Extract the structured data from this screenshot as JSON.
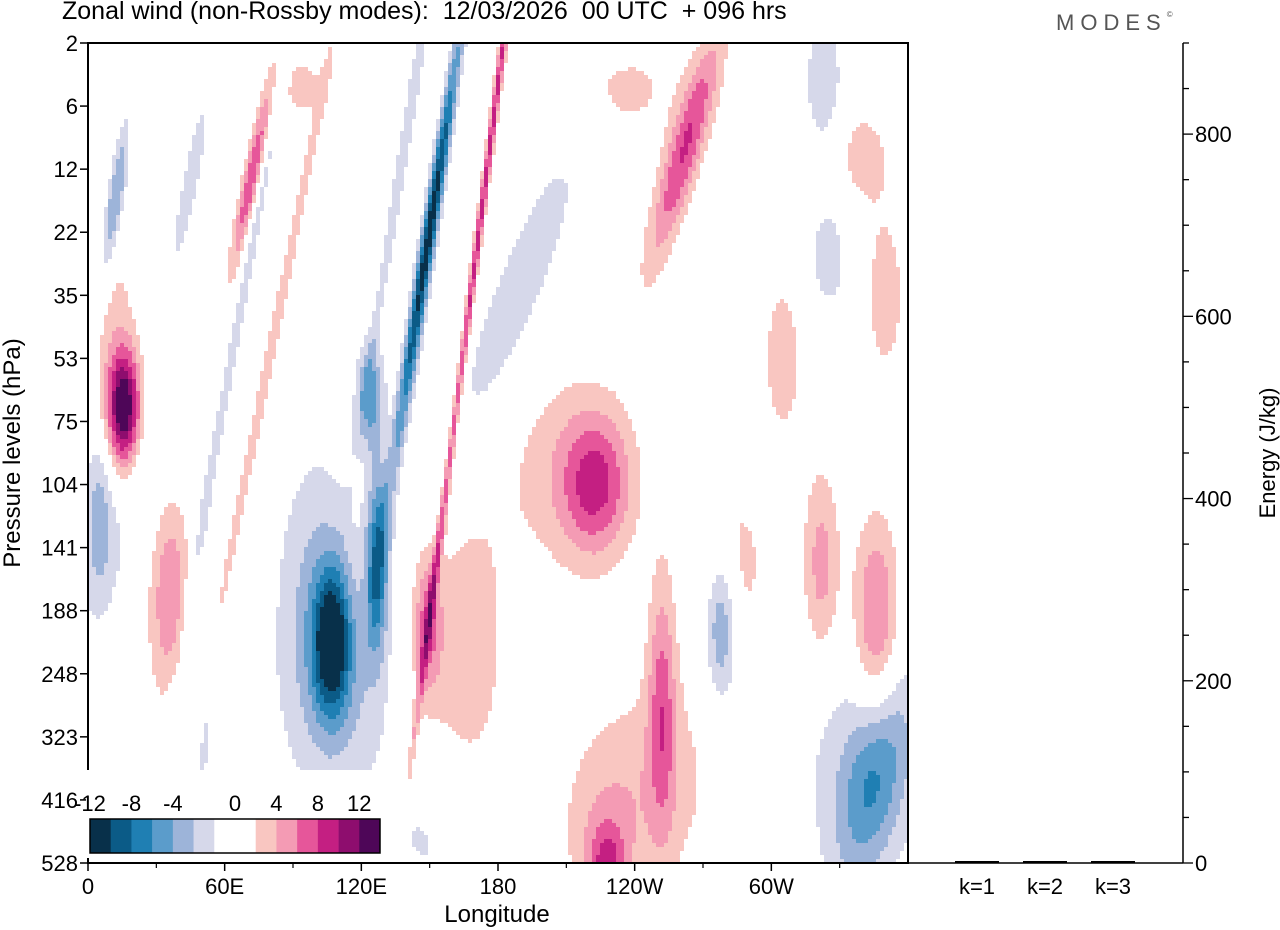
{
  "title": "Zonal wind (non-Rossby modes):  12/03/2026  00 UTC  + 096 hrs",
  "logo": "MODES",
  "logo_mark": "©",
  "colors": {
    "neg": [
      "#08304a",
      "#0b5b87",
      "#1f7fb3",
      "#5b9ccb",
      "#9db4d9",
      "#d6d8ea"
    ],
    "zero": "#ffffff",
    "pos": [
      "#f9c6c1",
      "#f49bb4",
      "#e6569a",
      "#c41f82",
      "#8e0d6e",
      "#4e0658"
    ]
  },
  "chart_data": [
    {
      "type": "heatmap",
      "title": "Zonal wind (non-Rossby modes)",
      "date": "12/03/2026",
      "time": "00 UTC",
      "lead": "+ 096 hrs",
      "xlabel": "Longitude",
      "ylabel": "Pressure levels (hPa)",
      "x_ticks": [
        "0",
        "60E",
        "120E",
        "180",
        "120W",
        "60W"
      ],
      "x_tick_values": [
        0,
        60,
        120,
        180,
        240,
        300
      ],
      "xlim": [
        0,
        360
      ],
      "y_ticks": [
        "2",
        "6",
        "12",
        "22",
        "35",
        "53",
        "75",
        "104",
        "141",
        "188",
        "248",
        "323",
        "416",
        "528"
      ],
      "colorbar_labels": [
        "-12",
        "-8",
        "-4",
        "0",
        "4",
        "8",
        "12"
      ],
      "colorbar_levels": [
        -12,
        -10,
        -8,
        -6,
        -4,
        -2,
        2,
        4,
        6,
        8,
        10,
        12
      ],
      "blobs": [
        {
          "lon": 107,
          "lev": 9.5,
          "w": 8,
          "h": 1.1,
          "amp": -12,
          "tilt": 0
        },
        {
          "lon": 127,
          "lev": 8.2,
          "w": 5,
          "h": 1.5,
          "amp": -9,
          "tilt": -2
        },
        {
          "lon": 101,
          "lev": 8.6,
          "w": 18,
          "h": 2.2,
          "amp": -4,
          "tilt": 0
        },
        {
          "lon": 110,
          "lev": 10.5,
          "w": 26,
          "h": 1.8,
          "amp": -3,
          "tilt": 0
        },
        {
          "lon": 14,
          "lev": 7.6,
          "w": 22,
          "h": 1.6,
          "amp": -3,
          "tilt": -4
        },
        {
          "lon": 124,
          "lev": 5.6,
          "w": 6,
          "h": 0.8,
          "amp": -7,
          "tilt": 0
        },
        {
          "lon": 143,
          "lev": 4.7,
          "w": 14,
          "h": 0.9,
          "amp": -5,
          "tilt": -22
        },
        {
          "lon": 152,
          "lev": 2.5,
          "w": 14,
          "h": 0.7,
          "amp": -10,
          "tilt": -22
        },
        {
          "lon": 140,
          "lev": 1.4,
          "w": 18,
          "h": 0.6,
          "amp": -4,
          "tilt": -22
        },
        {
          "lon": 70,
          "lev": 3.6,
          "w": 30,
          "h": 0.6,
          "amp": -3,
          "tilt": -20
        },
        {
          "lon": 12,
          "lev": 2.5,
          "w": 6,
          "h": 0.8,
          "amp": -7,
          "tilt": -15
        },
        {
          "lon": 45,
          "lev": 2.2,
          "w": 8,
          "h": 0.6,
          "amp": -4,
          "tilt": -15
        },
        {
          "lon": 186,
          "lev": 4.2,
          "w": 40,
          "h": 1.4,
          "amp": -3,
          "tilt": -8
        },
        {
          "lon": 278,
          "lev": 9.2,
          "w": 7,
          "h": 1.2,
          "amp": -7,
          "tilt": 0
        },
        {
          "lon": 345,
          "lev": 11.7,
          "w": 16,
          "h": 1.4,
          "amp": -6,
          "tilt": -5
        },
        {
          "lon": 340,
          "lev": 11.4,
          "w": 30,
          "h": 2.0,
          "amp": -3,
          "tilt": 0
        },
        {
          "lon": 5,
          "lev": 7.4,
          "w": 6,
          "h": 1.3,
          "amp": -4,
          "tilt": 0
        },
        {
          "lon": 150,
          "lev": 12.6,
          "w": 20,
          "h": 1.2,
          "amp": -2.5,
          "tilt": 0
        },
        {
          "lon": 323,
          "lev": 0.6,
          "w": 8,
          "h": 1.0,
          "amp": -4,
          "tilt": 0
        },
        {
          "lon": 325,
          "lev": 3.4,
          "w": 10,
          "h": 1.0,
          "amp": -3,
          "tilt": 0
        },
        {
          "lon": 50,
          "lev": 10.2,
          "w": 8,
          "h": 3.0,
          "amp": -2.5,
          "tilt": 0
        },
        {
          "lon": 72,
          "lev": 2.1,
          "w": 9,
          "h": 0.6,
          "amp": 8,
          "tilt": -15
        },
        {
          "lon": 172,
          "lev": 2.9,
          "w": 32,
          "h": 0.5,
          "amp": 9,
          "tilt": -28
        },
        {
          "lon": 16,
          "lev": 5.8,
          "w": 7,
          "h": 0.9,
          "amp": 13,
          "tilt": 0
        },
        {
          "lon": 12,
          "lev": 5.3,
          "w": 10,
          "h": 2.6,
          "amp": 3,
          "tilt": 0
        },
        {
          "lon": 78,
          "lev": 5.3,
          "w": 40,
          "h": 0.5,
          "amp": 3.5,
          "tilt": -18
        },
        {
          "lon": 223,
          "lev": 7.0,
          "w": 15,
          "h": 1.1,
          "amp": 7,
          "tilt": 0
        },
        {
          "lon": 211,
          "lev": 6.8,
          "w": 28,
          "h": 1.6,
          "amp": 3,
          "tilt": 0
        },
        {
          "lon": 262,
          "lev": 1.7,
          "w": 16,
          "h": 0.9,
          "amp": 8,
          "tilt": -10
        },
        {
          "lon": 230,
          "lev": 0.7,
          "w": 30,
          "h": 0.9,
          "amp": 3,
          "tilt": 0
        },
        {
          "lon": 36,
          "lev": 8.7,
          "w": 10,
          "h": 1.7,
          "amp": 6,
          "tilt": 0
        },
        {
          "lon": 165,
          "lev": 9.6,
          "w": 22,
          "h": 2.8,
          "amp": 3,
          "tilt": 0
        },
        {
          "lon": 149,
          "lev": 9.2,
          "w": 6,
          "h": 1.1,
          "amp": 6,
          "tilt": 0
        },
        {
          "lon": 252,
          "lev": 10.4,
          "w": 6,
          "h": 2.0,
          "amp": 6,
          "tilt": 0
        },
        {
          "lon": 250,
          "lev": 11.7,
          "w": 28,
          "h": 1.8,
          "amp": 3,
          "tilt": 0
        },
        {
          "lon": 225,
          "lev": 12.5,
          "w": 18,
          "h": 1.4,
          "amp": 3,
          "tilt": 0
        },
        {
          "lon": 228,
          "lev": 13.0,
          "w": 8,
          "h": 0.6,
          "amp": 6,
          "tilt": 0
        },
        {
          "lon": 346,
          "lev": 9.2,
          "w": 10,
          "h": 1.6,
          "amp": 7,
          "tilt": 0
        },
        {
          "lon": 322,
          "lev": 8.3,
          "w": 8,
          "h": 1.5,
          "amp": 5,
          "tilt": 0
        },
        {
          "lon": 283,
          "lev": 8.3,
          "w": 16,
          "h": 1.4,
          "amp": 3,
          "tilt": 0
        },
        {
          "lon": 305,
          "lev": 5.0,
          "w": 10,
          "h": 1.5,
          "amp": 3,
          "tilt": 0
        },
        {
          "lon": 350,
          "lev": 4.0,
          "w": 10,
          "h": 1.5,
          "amp": 3,
          "tilt": 0
        },
        {
          "lon": 340,
          "lev": 1.8,
          "w": 12,
          "h": 0.8,
          "amp": 3,
          "tilt": 0
        },
        {
          "lon": 94,
          "lev": 0.7,
          "w": 10,
          "h": 0.5,
          "amp": 3,
          "tilt": 0
        }
      ]
    },
    {
      "type": "bar",
      "ylabel": "Energy (J/kg)",
      "categories": [
        "k=1",
        "k=2",
        "k=3"
      ],
      "values": [
        0.5,
        0.5,
        0.5
      ],
      "ylim": [
        0,
        900
      ],
      "y_ticks": [
        "0",
        "200",
        "400",
        "600",
        "800"
      ],
      "y_tick_values": [
        0,
        200,
        400,
        600,
        800
      ]
    }
  ]
}
